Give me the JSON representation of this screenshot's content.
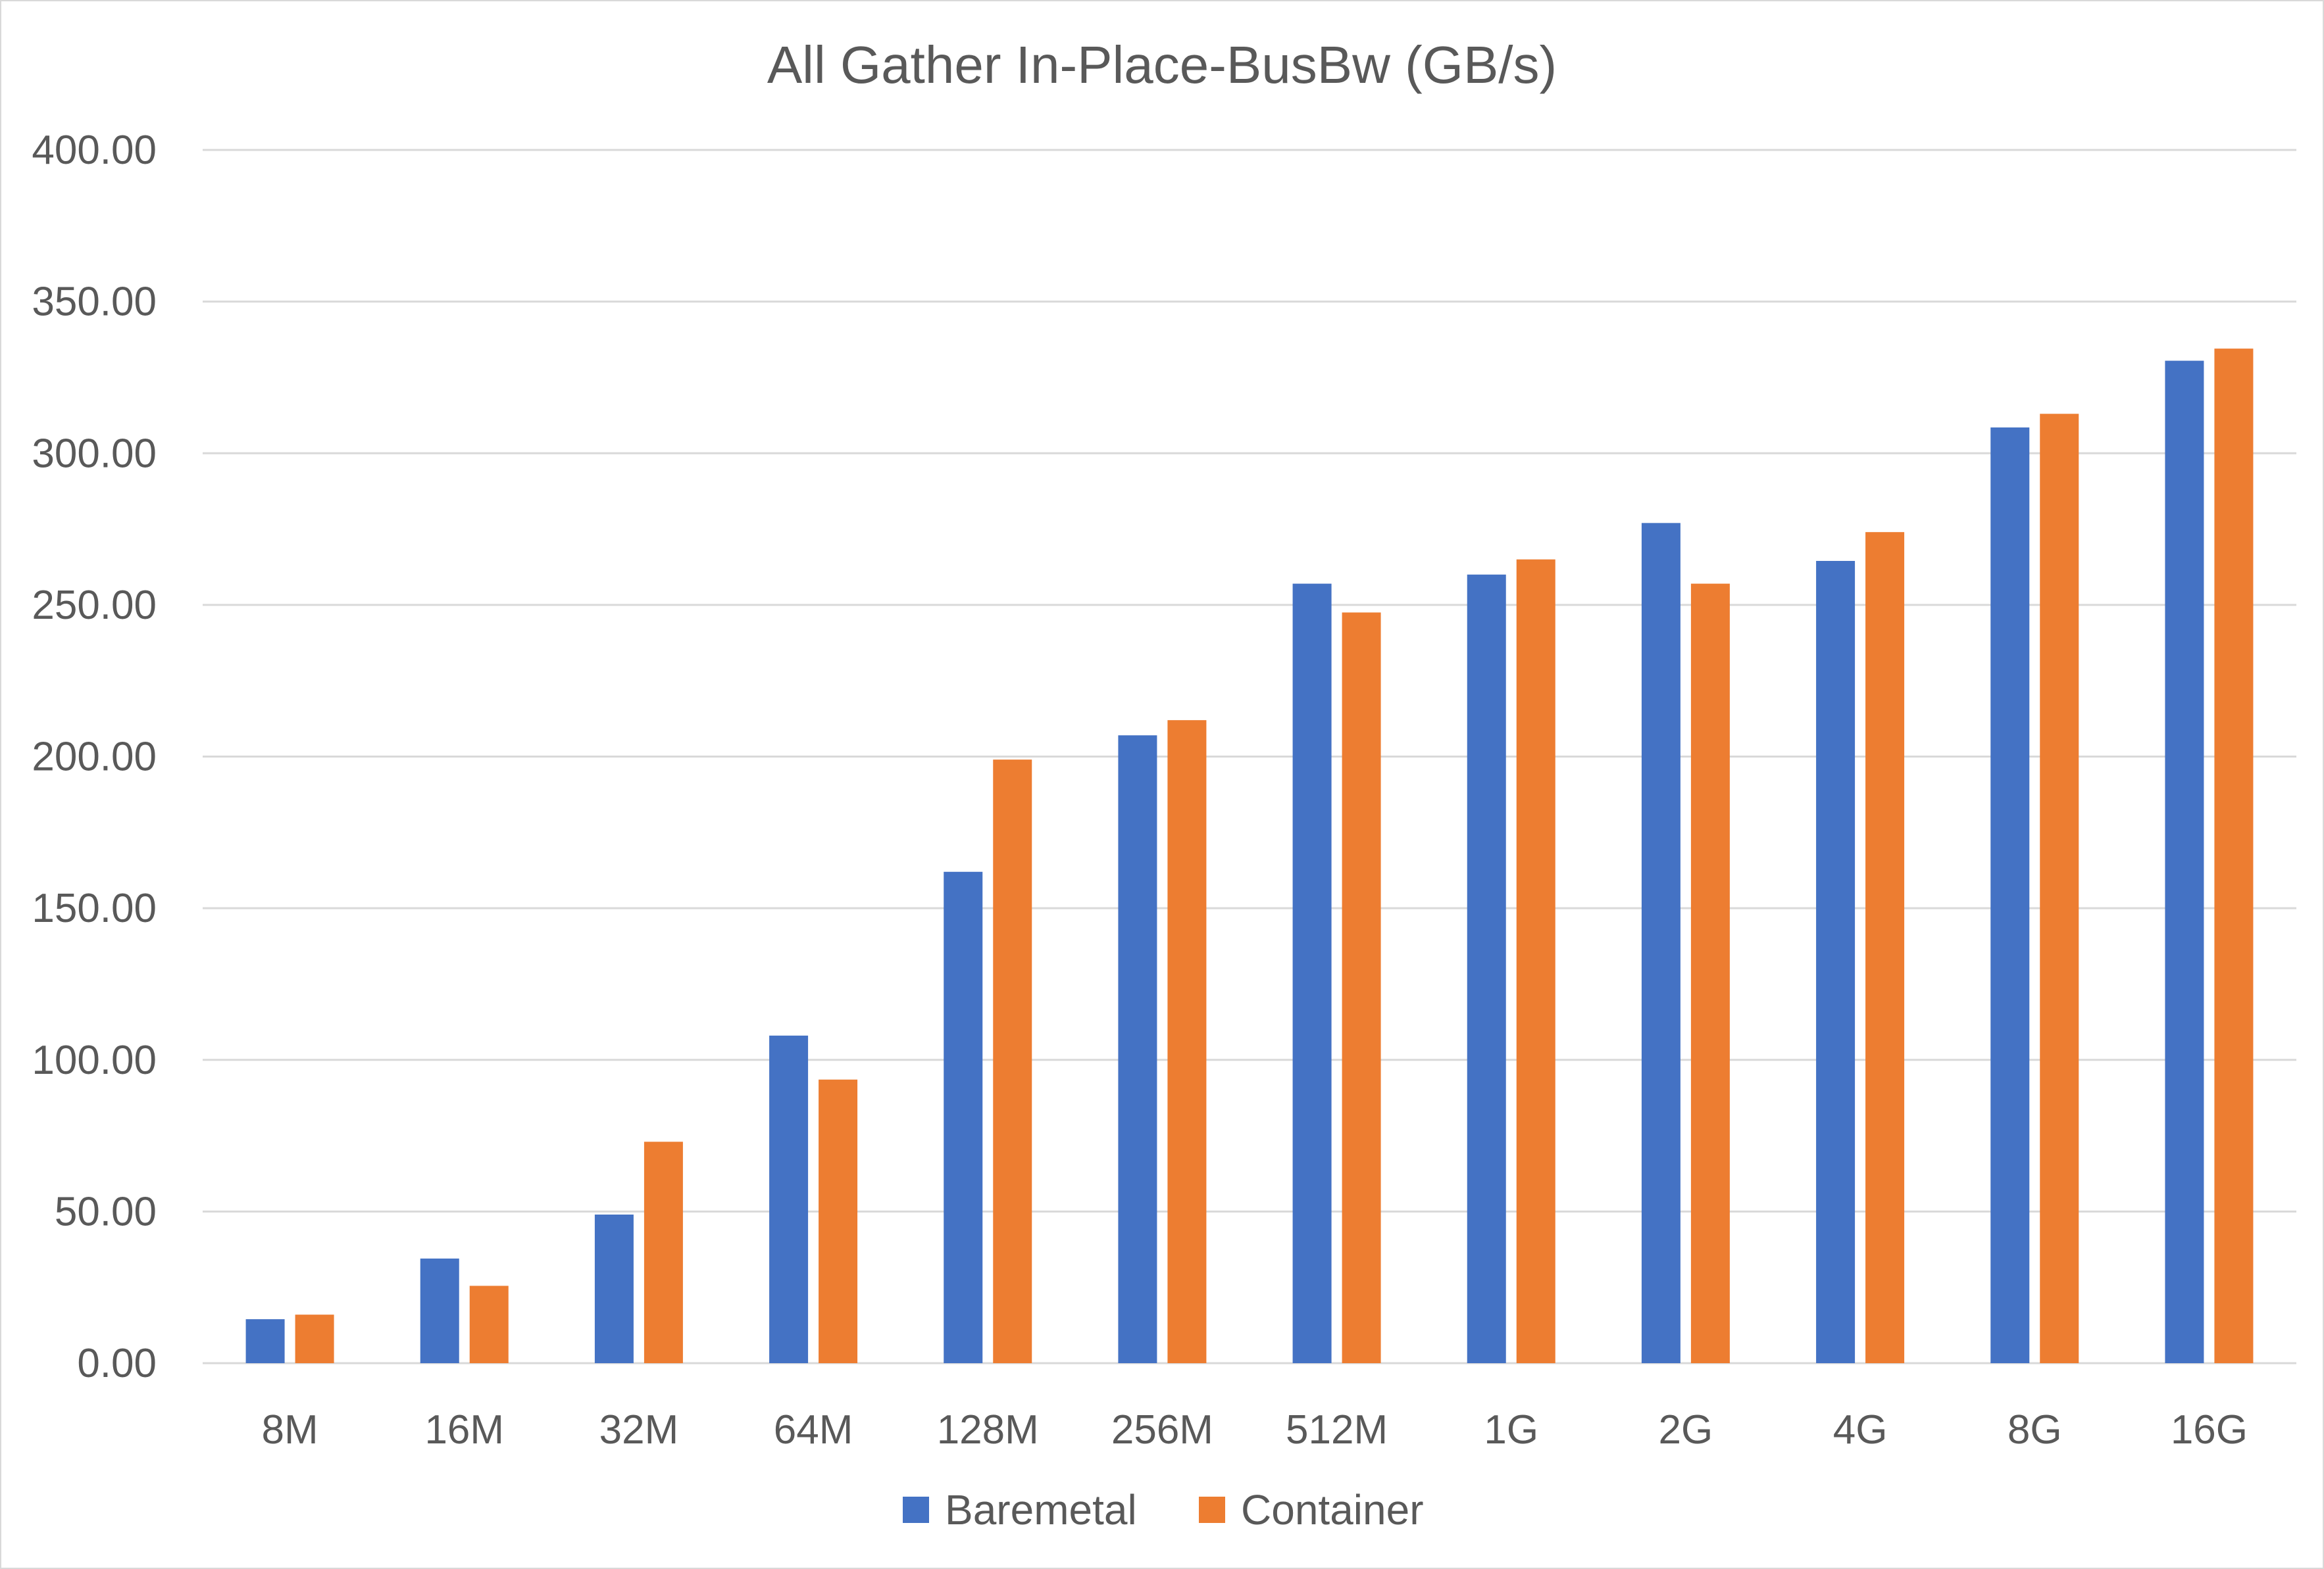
{
  "chart_data": {
    "type": "bar",
    "title": "All Gather In-Place-BusBw (GB/s)",
    "xlabel": "",
    "ylabel": "",
    "categories": [
      "8M",
      "16M",
      "32M",
      "64M",
      "128M",
      "256M",
      "512M",
      "1G",
      "2G",
      "4G",
      "8G",
      "16G"
    ],
    "series": [
      {
        "name": "Baremetal",
        "color": "#4472c4",
        "values": [
          14.5,
          34.5,
          49,
          108,
          162,
          207,
          257,
          260,
          277,
          264.5,
          308.5,
          330.5
        ]
      },
      {
        "name": "Container",
        "color": "#ed7d31",
        "values": [
          16,
          25.5,
          73,
          93.5,
          199,
          212,
          247.5,
          265,
          257,
          274,
          313,
          334.5
        ]
      }
    ],
    "ylim": [
      0,
      400
    ],
    "yticks": [
      "0.00",
      "50.00",
      "100.00",
      "150.00",
      "200.00",
      "250.00",
      "300.00",
      "350.00",
      "400.00"
    ],
    "grid": true,
    "legend_position": "bottom"
  }
}
